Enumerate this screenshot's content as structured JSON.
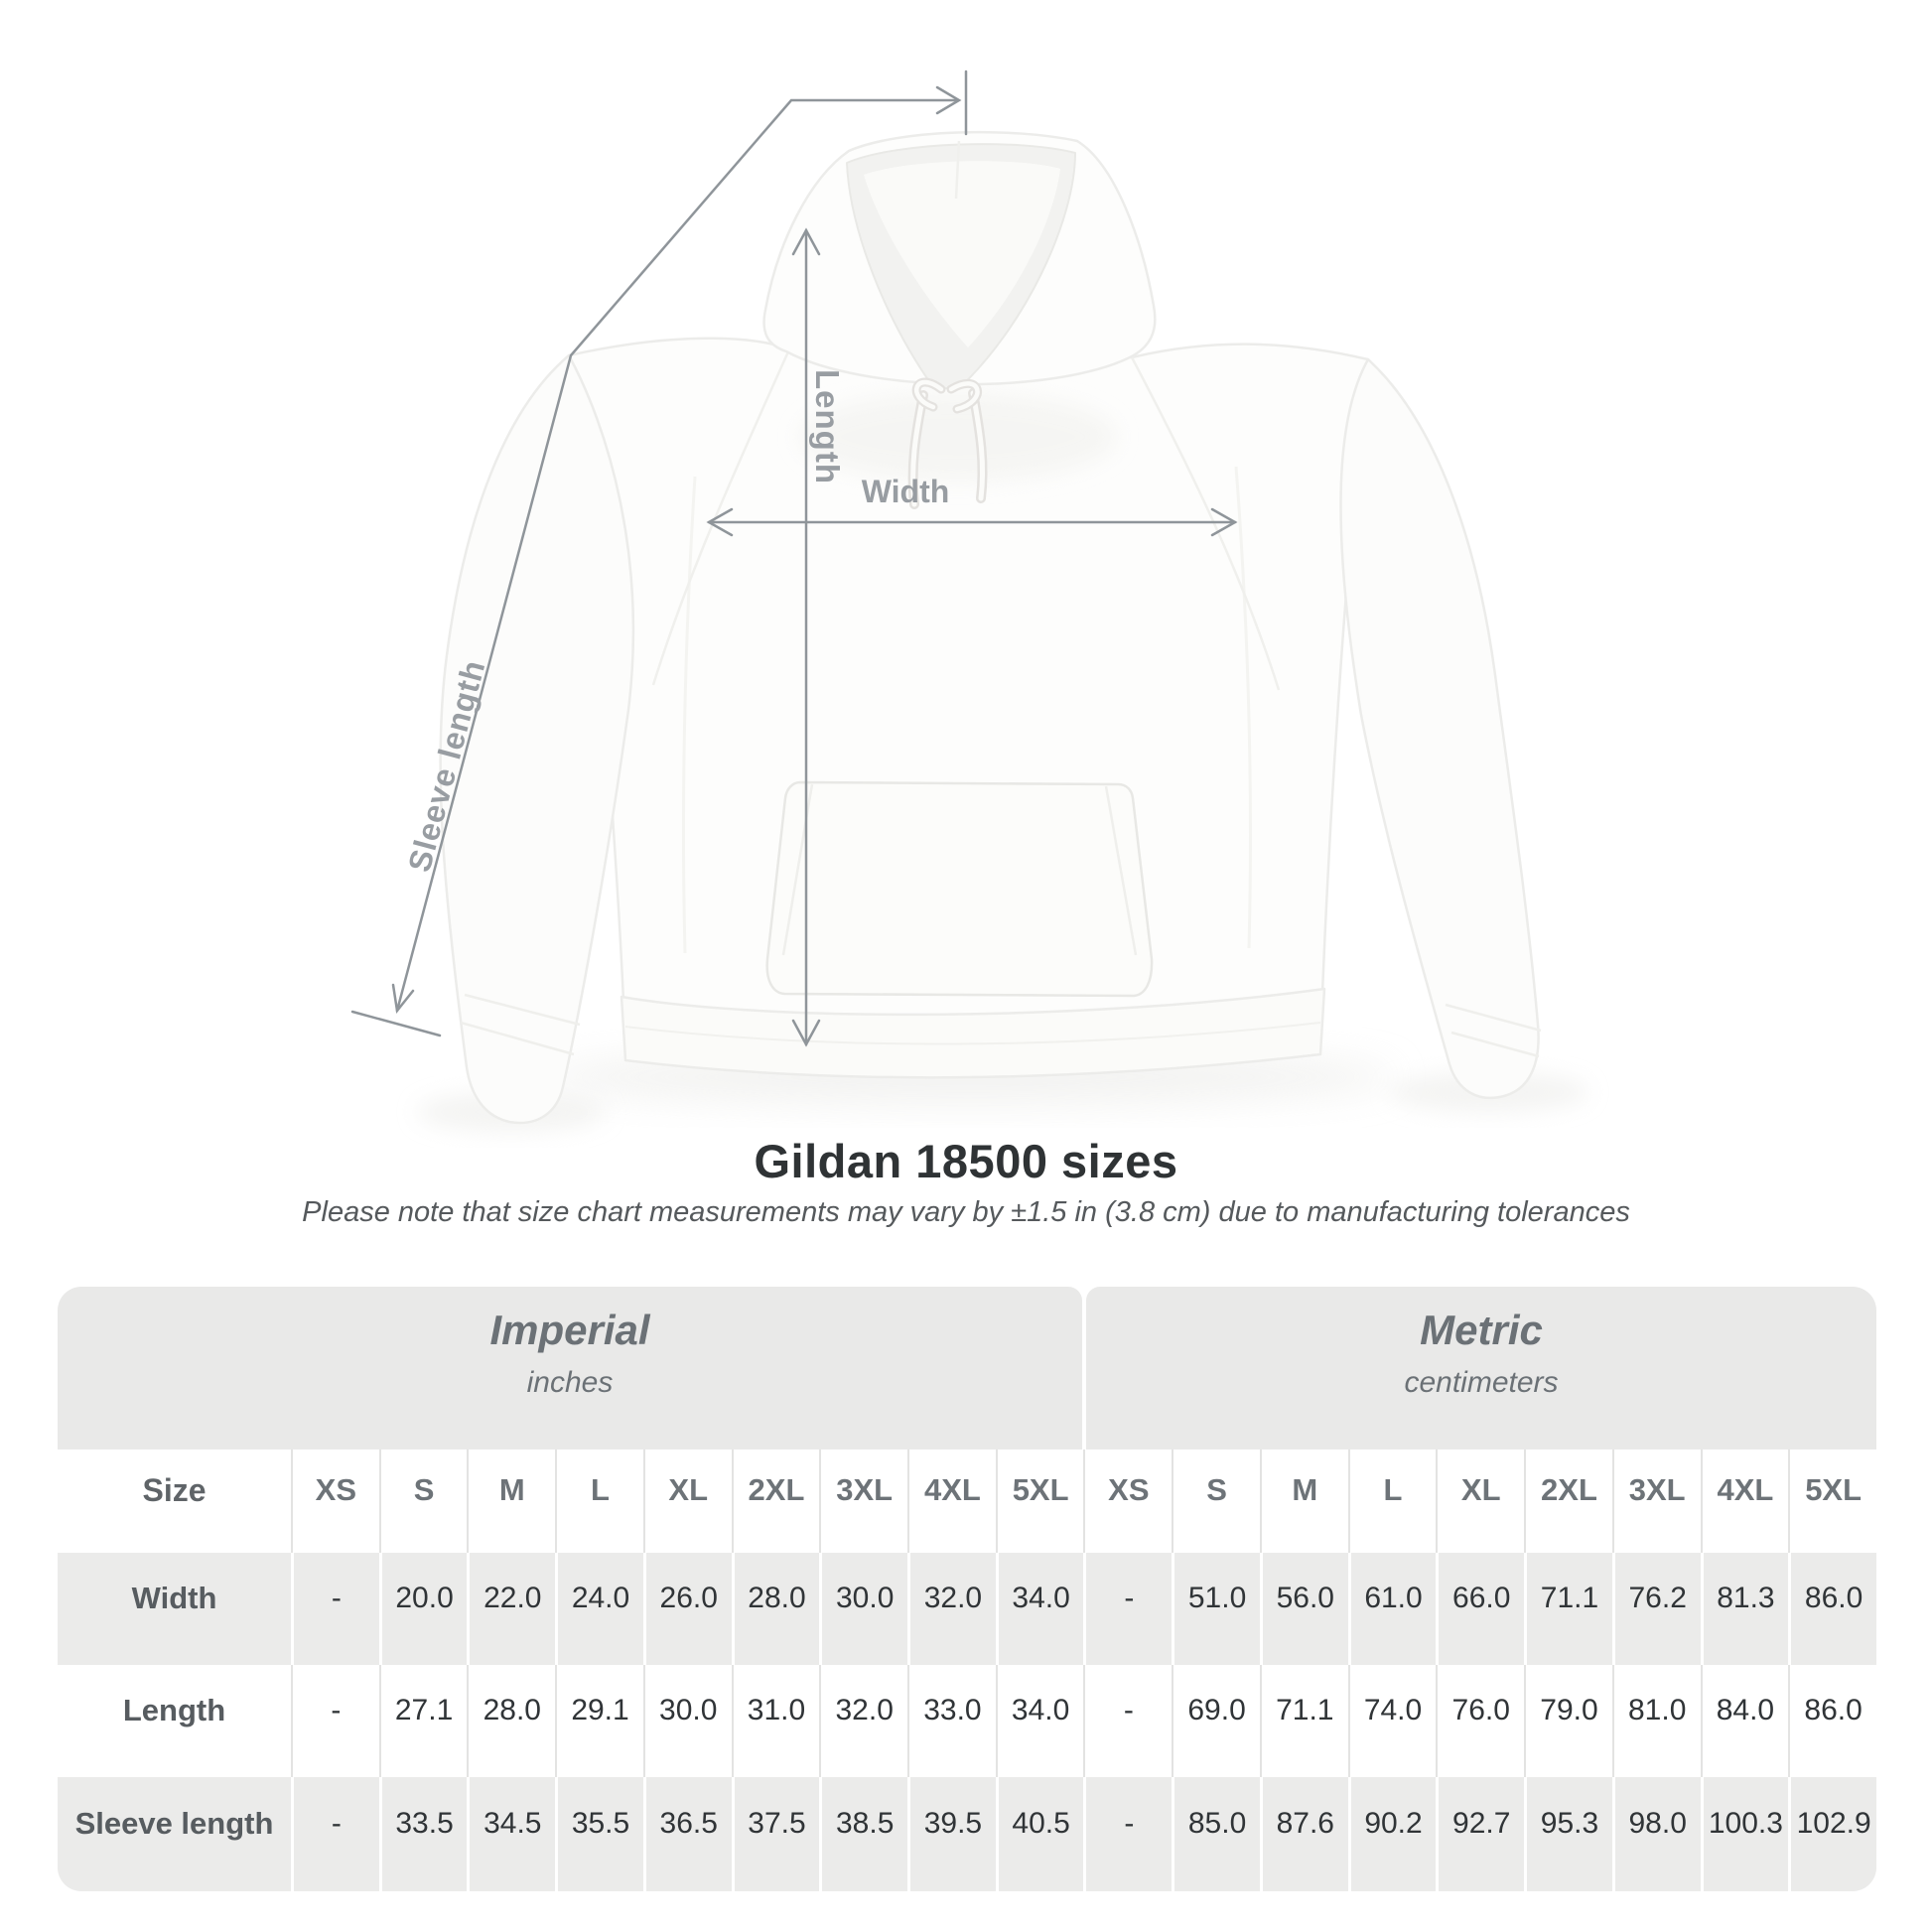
{
  "diagram": {
    "labels": {
      "length": "Length",
      "width": "Width",
      "sleeve": "Sleeve length"
    }
  },
  "chart_data": {
    "type": "table",
    "title": "Gildan 18500 sizes",
    "subtitle": "Please note that size chart measurements may vary by ±1.5 in (3.8 cm) due to manufacturing tolerances",
    "size_header": "Size",
    "sizes": [
      "XS",
      "S",
      "M",
      "L",
      "XL",
      "2XL",
      "3XL",
      "4XL",
      "5XL"
    ],
    "unit_groups": [
      {
        "label": "Imperial",
        "sublabel": "inches"
      },
      {
        "label": "Metric",
        "sublabel": "centimeters"
      }
    ],
    "rows": [
      {
        "label": "Width",
        "imperial": [
          "-",
          "20.0",
          "22.0",
          "24.0",
          "26.0",
          "28.0",
          "30.0",
          "32.0",
          "34.0"
        ],
        "metric": [
          "-",
          "51.0",
          "56.0",
          "61.0",
          "66.0",
          "71.1",
          "76.2",
          "81.3",
          "86.0"
        ]
      },
      {
        "label": "Length",
        "imperial": [
          "-",
          "27.1",
          "28.0",
          "29.1",
          "30.0",
          "31.0",
          "32.0",
          "33.0",
          "34.0"
        ],
        "metric": [
          "-",
          "69.0",
          "71.1",
          "74.0",
          "76.0",
          "79.0",
          "81.0",
          "84.0",
          "86.0"
        ]
      },
      {
        "label": "Sleeve length",
        "imperial": [
          "-",
          "33.5",
          "34.5",
          "35.5",
          "36.5",
          "37.5",
          "38.5",
          "39.5",
          "40.5"
        ],
        "metric": [
          "-",
          "85.0",
          "87.6",
          "90.2",
          "92.7",
          "95.3",
          "98.0",
          "100.3",
          "102.9"
        ]
      }
    ],
    "layout": {
      "grid": false,
      "stripe_color": "#ebebea",
      "band_color": "#e9e9e8"
    }
  },
  "colors": {
    "measurement_line": "#8f959a",
    "measurement_label": "#989da2",
    "title_text": "#2f3335",
    "band_background": "#e9e9e8",
    "row_stripe": "#ebebea",
    "data_text": "#303437"
  }
}
